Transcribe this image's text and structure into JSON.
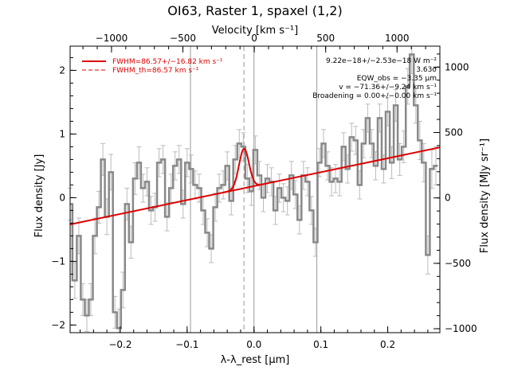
{
  "chart_data": {
    "type": "line",
    "title": "OI63, Raster 1, spaxel (1,2)",
    "xlabel": "λ-λ_rest [μm]",
    "ylabel": "Flux density [Jy]",
    "x2label": "Velocity [km s⁻¹]",
    "y2label": "Flux density [MJy sr⁻¹]",
    "xlim": [
      -0.275,
      0.278
    ],
    "ylim": [
      -2.12,
      2.38
    ],
    "x2lim": [
      -1290,
      1300
    ],
    "y2lim": [
      -1030,
      1160
    ],
    "x_ticks": [
      -0.2,
      -0.1,
      0.0,
      0.1,
      0.2
    ],
    "y_ticks": [
      -2,
      -1,
      0,
      1,
      2
    ],
    "x2_ticks": [
      -1000,
      -500,
      0,
      500,
      1000
    ],
    "y2_ticks": [
      -1000,
      -500,
      0,
      500,
      1000
    ],
    "x_tick_labels": [
      "−0.2",
      "−0.1",
      "0.0",
      "0.1",
      "0.2"
    ],
    "y_tick_labels": [
      "−2",
      "−1",
      "0",
      "1",
      "2"
    ],
    "x2_tick_labels": [
      "−1000",
      "−500",
      "0",
      "500",
      "1000"
    ],
    "y2_tick_labels": [
      "−1000",
      "−500",
      "0",
      "500",
      "1000"
    ],
    "grid": false,
    "vertical_lines_solid": [
      -0.095,
      0.0,
      0.094
    ],
    "vertical_line_dashed": -0.015,
    "legend_position": "top-left",
    "legend": [
      {
        "label": "FWHM=86.57+/−16.82 km s⁻¹",
        "style": "solid",
        "color": "#dd0000"
      },
      {
        "label": "FWHM_th=86.57 km s⁻¹",
        "style": "dashed",
        "color": "#dd0000"
      }
    ],
    "annotations": [
      "9.22e−18+/−2.53e−18 W m⁻²",
      "3.63σ",
      "EQW_obs = −3.35 μm",
      "v = −71.36+/−9.24 km s⁻¹",
      "Broadening = 0.00+/−0.00 km s⁻¹"
    ],
    "series": [
      {
        "name": "",
        "kind": "spectrum",
        "color": "#888888",
        "x": [
          -0.275,
          -0.268,
          -0.262,
          -0.256,
          -0.25,
          -0.244,
          -0.238,
          -0.232,
          -0.226,
          -0.22,
          -0.214,
          -0.208,
          -0.202,
          -0.196,
          -0.19,
          -0.184,
          -0.178,
          -0.172,
          -0.166,
          -0.16,
          -0.154,
          -0.148,
          -0.142,
          -0.136,
          -0.13,
          -0.124,
          -0.118,
          -0.112,
          -0.106,
          -0.1,
          -0.094,
          -0.088,
          -0.082,
          -0.076,
          -0.07,
          -0.064,
          -0.058,
          -0.052,
          -0.046,
          -0.04,
          -0.034,
          -0.028,
          -0.022,
          -0.016,
          -0.01,
          -0.004,
          0.002,
          0.008,
          0.014,
          0.02,
          0.026,
          0.032,
          0.038,
          0.044,
          0.05,
          0.056,
          0.062,
          0.068,
          0.074,
          0.08,
          0.086,
          0.092,
          0.098,
          0.104,
          0.11,
          0.116,
          0.122,
          0.128,
          0.134,
          0.14,
          0.146,
          0.152,
          0.158,
          0.164,
          0.17,
          0.176,
          0.182,
          0.188,
          0.194,
          0.2,
          0.206,
          0.212,
          0.218,
          0.224,
          0.23,
          0.236,
          0.242,
          0.248,
          0.254,
          0.26,
          0.266,
          0.272
        ],
        "y": [
          -0.1,
          -1.3,
          -0.6,
          -1.6,
          -1.85,
          -1.6,
          -0.6,
          -0.15,
          0.6,
          -0.3,
          0.4,
          -1.8,
          -2.05,
          -1.45,
          -0.1,
          -0.7,
          0.3,
          0.55,
          0.15,
          0.25,
          -0.2,
          -0.15,
          0.55,
          0.6,
          -0.3,
          0.15,
          0.5,
          0.6,
          -0.1,
          0.55,
          0.45,
          0.2,
          0.15,
          -0.2,
          -0.55,
          -0.8,
          -0.15,
          0.15,
          0.2,
          0.5,
          -0.05,
          0.6,
          0.85,
          0.8,
          0.3,
          0.1,
          0.75,
          0.35,
          0.0,
          0.3,
          0.25,
          -0.2,
          0.15,
          0.0,
          -0.05,
          0.35,
          0.05,
          -0.35,
          0.35,
          0.25,
          -0.2,
          -0.7,
          0.55,
          0.85,
          0.5,
          0.25,
          0.3,
          0.25,
          0.8,
          0.45,
          0.95,
          0.9,
          0.2,
          0.85,
          1.25,
          0.85,
          0.5,
          1.25,
          0.45,
          1.35,
          0.55,
          1.45,
          0.6,
          0.8,
          1.75,
          2.25,
          1.45,
          0.9,
          0.55,
          -0.9,
          0.45,
          0.5
        ],
        "errors": [
          0.25,
          0.28,
          0.28,
          0.25,
          0.25,
          0.25,
          0.28,
          0.25,
          0.25,
          0.28,
          0.28,
          0.25,
          0.3,
          0.28,
          0.25,
          0.25,
          0.25,
          0.25,
          0.22,
          0.22,
          0.22,
          0.22,
          0.22,
          0.22,
          0.22,
          0.22,
          0.22,
          0.22,
          0.22,
          0.22,
          0.22,
          0.22,
          0.22,
          0.22,
          0.22,
          0.22,
          0.22,
          0.22,
          0.22,
          0.22,
          0.22,
          0.22,
          0.22,
          0.22,
          0.22,
          0.22,
          0.22,
          0.22,
          0.22,
          0.22,
          0.22,
          0.22,
          0.22,
          0.22,
          0.22,
          0.22,
          0.22,
          0.22,
          0.22,
          0.22,
          0.22,
          0.22,
          0.22,
          0.22,
          0.22,
          0.22,
          0.22,
          0.22,
          0.22,
          0.22,
          0.22,
          0.22,
          0.22,
          0.22,
          0.22,
          0.22,
          0.22,
          0.22,
          0.22,
          0.22,
          0.25,
          0.25,
          0.25,
          0.25,
          0.28,
          0.3,
          0.28,
          0.3,
          0.3,
          0.3,
          0.3,
          0.3
        ]
      },
      {
        "name": "",
        "kind": "fit",
        "color": "#dd0000",
        "continuum": {
          "x": [
            -0.275,
            0.278
          ],
          "y": [
            -0.42,
            0.79
          ]
        },
        "gaussian": {
          "center": -0.015,
          "amplitude": 0.62,
          "sigma": 0.0075
        }
      }
    ]
  }
}
